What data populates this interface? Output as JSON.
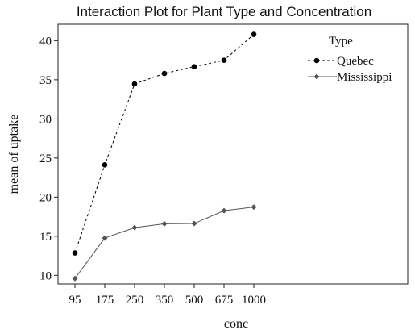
{
  "chart_data": {
    "type": "line",
    "title": "Interaction Plot for Plant Type and Concentration",
    "xlabel": "conc",
    "ylabel": "mean of  uptake",
    "categories": [
      "95",
      "175",
      "250",
      "350",
      "500",
      "675",
      "1000"
    ],
    "ylim": [
      8.9,
      42.1
    ],
    "yticks": [
      10,
      15,
      20,
      25,
      30,
      35,
      40
    ],
    "grid": false,
    "legend": {
      "title": "Type",
      "placement": "top-right"
    },
    "series": [
      {
        "name": "Quebec",
        "values": [
          12.86,
          24.13,
          34.47,
          35.8,
          36.67,
          37.5,
          40.8
        ],
        "color": "#000000",
        "dash": "dashed",
        "marker": "circle"
      },
      {
        "name": "Mississippi",
        "values": [
          9.6,
          14.77,
          16.1,
          16.6,
          16.63,
          18.27,
          18.73
        ],
        "color": "#555555",
        "dash": "solid",
        "marker": "diamond"
      }
    ]
  }
}
